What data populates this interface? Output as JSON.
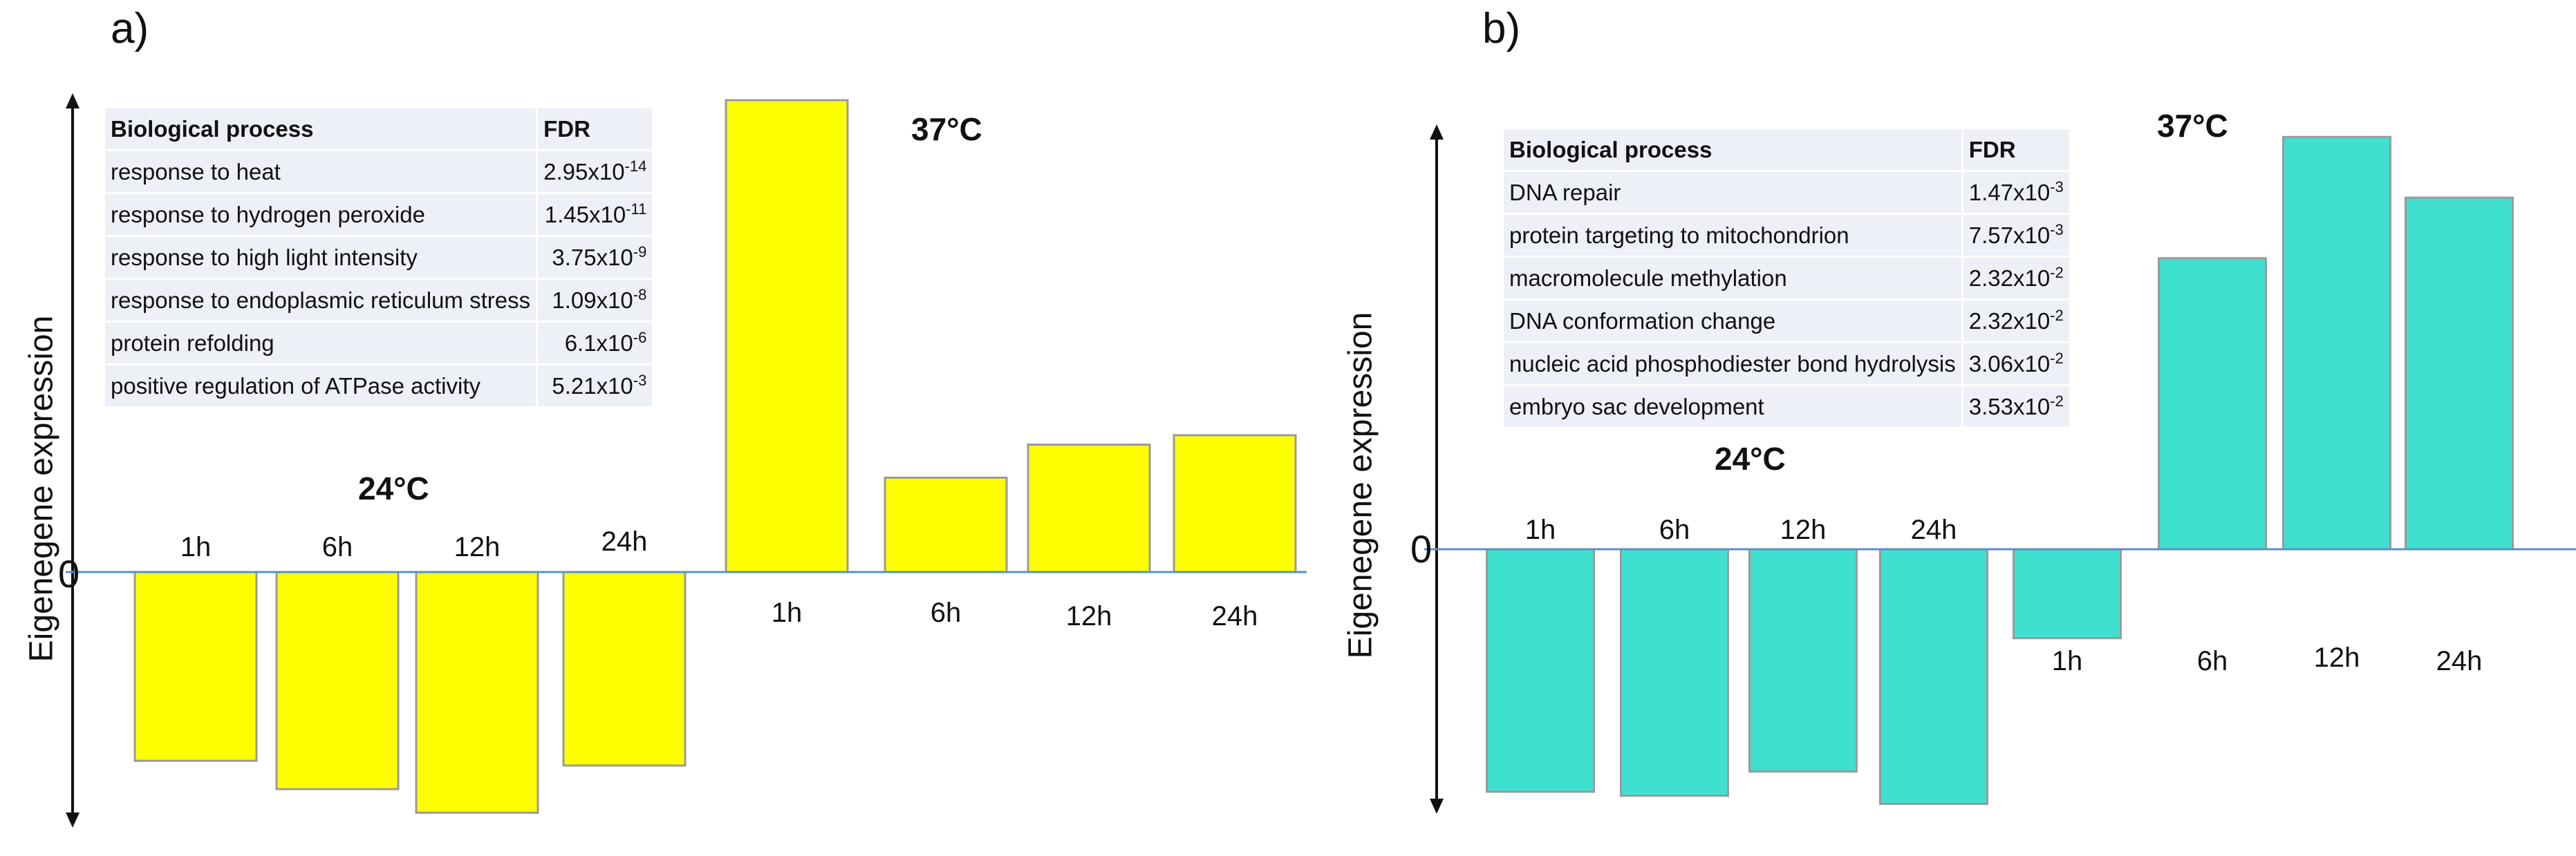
{
  "chart_data": [
    {
      "panel_label": "a)",
      "type": "bar",
      "ylabel": "Eigenegene expression",
      "zero_label": "0",
      "groups": [
        {
          "name": "24°C",
          "categories": [
            "1h",
            "6h",
            "12h",
            "24h"
          ],
          "values": [
            -0.4,
            -0.46,
            -0.51,
            -0.41
          ]
        },
        {
          "name": "37°C",
          "categories": [
            "1h",
            "6h",
            "12h",
            "24h"
          ],
          "values": [
            1.0,
            0.2,
            0.27,
            0.29
          ]
        }
      ],
      "ylim": [
        -0.55,
        1.05
      ],
      "color": "#ffff00",
      "table": {
        "headers": [
          "Biological process",
          "FDR"
        ],
        "rows": [
          {
            "process": "response to heat",
            "mantissa": "2.95x10",
            "exponent": "-14"
          },
          {
            "process": "response to hydrogen peroxide",
            "mantissa": "1.45x10",
            "exponent": "-11"
          },
          {
            "process": "response to high light intensity",
            "mantissa": "3.75x10",
            "exponent": "-9"
          },
          {
            "process": "response to endoplasmic reticulum stress",
            "mantissa": "1.09x10",
            "exponent": "-8"
          },
          {
            "process": "protein refolding",
            "mantissa": "6.1x10",
            "exponent": "-6"
          },
          {
            "process": "positive regulation of ATPase activity",
            "mantissa": "5.21x10",
            "exponent": "-3"
          }
        ]
      }
    },
    {
      "panel_label": "b)",
      "type": "bar",
      "ylabel": "Eigenegene expression",
      "zero_label": "0",
      "groups": [
        {
          "name": "24°C",
          "categories": [
            "1h",
            "6h",
            "12h",
            "24h"
          ],
          "values": [
            -0.6,
            -0.61,
            -0.55,
            -0.63
          ]
        },
        {
          "name": "37°C",
          "categories": [
            "1h",
            "6h",
            "12h",
            "24h"
          ],
          "values": [
            -0.22,
            0.72,
            1.02,
            0.87
          ]
        }
      ],
      "ylim": [
        -0.66,
        1.05
      ],
      "color": "#40e0d0",
      "table": {
        "headers": [
          "Biological process",
          "FDR"
        ],
        "rows": [
          {
            "process": "DNA repair",
            "mantissa": "1.47x10",
            "exponent": "-3"
          },
          {
            "process": "protein targeting to mitochondrion",
            "mantissa": "7.57x10",
            "exponent": "-3"
          },
          {
            "process": "macromolecule methylation",
            "mantissa": "2.32x10",
            "exponent": "-2"
          },
          {
            "process": "DNA conformation change",
            "mantissa": "2.32x10",
            "exponent": "-2"
          },
          {
            "process": "nucleic acid phosphodiester bond hydrolysis",
            "mantissa": "3.06x10",
            "exponent": "-2"
          },
          {
            "process": "embryo sac development",
            "mantissa": "3.53x10",
            "exponent": "-2"
          }
        ]
      }
    }
  ]
}
